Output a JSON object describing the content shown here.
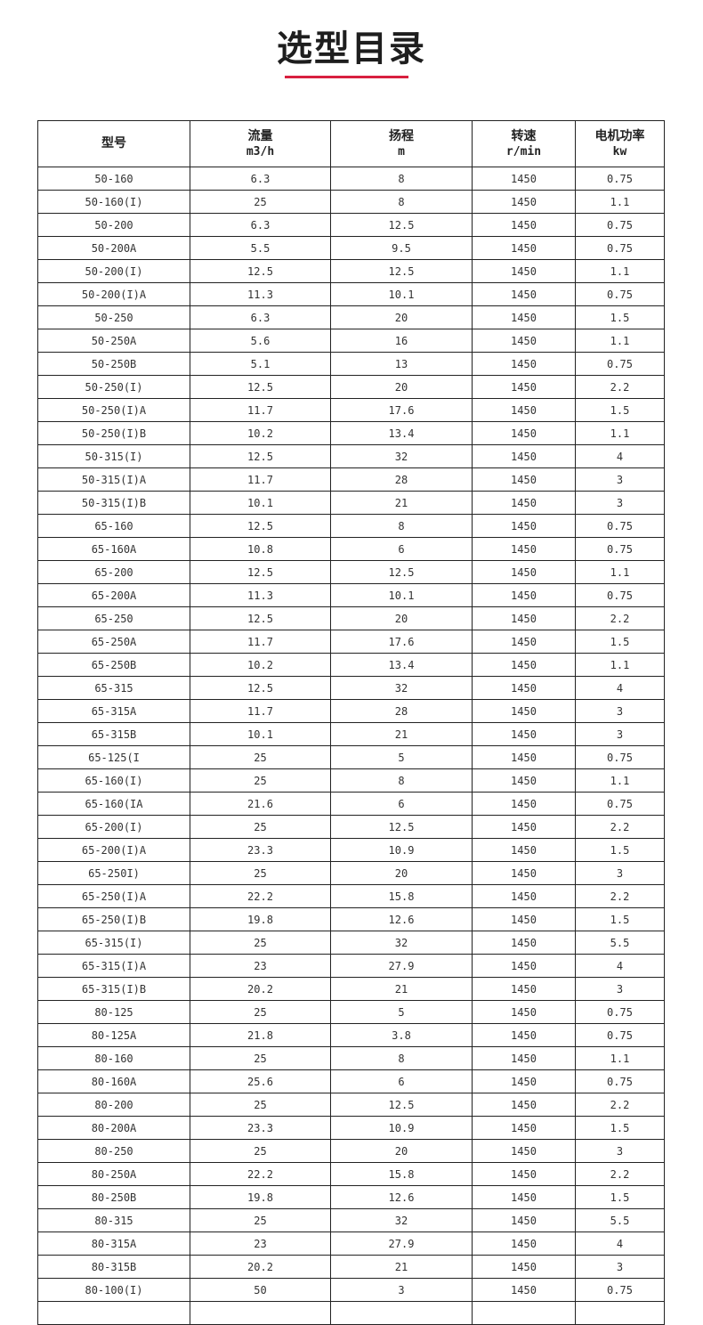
{
  "title": "选型目录",
  "accent_color": "#d8203f",
  "table": {
    "headers": [
      {
        "label": "型号",
        "unit": ""
      },
      {
        "label": "流量",
        "unit": "m3/h"
      },
      {
        "label": "扬程",
        "unit": "m"
      },
      {
        "label": "转速",
        "unit": "r/min"
      },
      {
        "label": "电机功率",
        "unit": "kw"
      }
    ],
    "rows": [
      [
        "50-160",
        "6.3",
        "8",
        "1450",
        "0.75"
      ],
      [
        "50-160(I)",
        "25",
        "8",
        "1450",
        "1.1"
      ],
      [
        "50-200",
        "6.3",
        "12.5",
        "1450",
        "0.75"
      ],
      [
        "50-200A",
        "5.5",
        "9.5",
        "1450",
        "0.75"
      ],
      [
        "50-200(I)",
        "12.5",
        "12.5",
        "1450",
        "1.1"
      ],
      [
        "50-200(I)A",
        "11.3",
        "10.1",
        "1450",
        "0.75"
      ],
      [
        "50-250",
        "6.3",
        "20",
        "1450",
        "1.5"
      ],
      [
        "50-250A",
        "5.6",
        "16",
        "1450",
        "1.1"
      ],
      [
        "50-250B",
        "5.1",
        "13",
        "1450",
        "0.75"
      ],
      [
        "50-250(I)",
        "12.5",
        "20",
        "1450",
        "2.2"
      ],
      [
        "50-250(I)A",
        "11.7",
        "17.6",
        "1450",
        "1.5"
      ],
      [
        "50-250(I)B",
        "10.2",
        "13.4",
        "1450",
        "1.1"
      ],
      [
        "50-315(I)",
        "12.5",
        "32",
        "1450",
        "4"
      ],
      [
        "50-315(I)A",
        "11.7",
        "28",
        "1450",
        "3"
      ],
      [
        "50-315(I)B",
        "10.1",
        "21",
        "1450",
        "3"
      ],
      [
        "65-160",
        "12.5",
        "8",
        "1450",
        "0.75"
      ],
      [
        "65-160A",
        "10.8",
        "6",
        "1450",
        "0.75"
      ],
      [
        "65-200",
        "12.5",
        "12.5",
        "1450",
        "1.1"
      ],
      [
        "65-200A",
        "11.3",
        "10.1",
        "1450",
        "0.75"
      ],
      [
        "65-250",
        "12.5",
        "20",
        "1450",
        "2.2"
      ],
      [
        "65-250A",
        "11.7",
        "17.6",
        "1450",
        "1.5"
      ],
      [
        "65-250B",
        "10.2",
        "13.4",
        "1450",
        "1.1"
      ],
      [
        "65-315",
        "12.5",
        "32",
        "1450",
        "4"
      ],
      [
        "65-315A",
        "11.7",
        "28",
        "1450",
        "3"
      ],
      [
        "65-315B",
        "10.1",
        "21",
        "1450",
        "3"
      ],
      [
        "65-125(I",
        "25",
        "5",
        "1450",
        "0.75"
      ],
      [
        "65-160(I)",
        "25",
        "8",
        "1450",
        "1.1"
      ],
      [
        "65-160(IA",
        "21.6",
        "6",
        "1450",
        "0.75"
      ],
      [
        "65-200(I)",
        "25",
        "12.5",
        "1450",
        "2.2"
      ],
      [
        "65-200(I)A",
        "23.3",
        "10.9",
        "1450",
        "1.5"
      ],
      [
        "65-250I)",
        "25",
        "20",
        "1450",
        "3"
      ],
      [
        "65-250(I)A",
        "22.2",
        "15.8",
        "1450",
        "2.2"
      ],
      [
        "65-250(I)B",
        "19.8",
        "12.6",
        "1450",
        "1.5"
      ],
      [
        "65-315(I)",
        "25",
        "32",
        "1450",
        "5.5"
      ],
      [
        "65-315(I)A",
        "23",
        "27.9",
        "1450",
        "4"
      ],
      [
        "65-315(I)B",
        "20.2",
        "21",
        "1450",
        "3"
      ],
      [
        "80-125",
        "25",
        "5",
        "1450",
        "0.75"
      ],
      [
        "80-125A",
        "21.8",
        "3.8",
        "1450",
        "0.75"
      ],
      [
        "80-160",
        "25",
        "8",
        "1450",
        "1.1"
      ],
      [
        "80-160A",
        "25.6",
        "6",
        "1450",
        "0.75"
      ],
      [
        "80-200",
        "25",
        "12.5",
        "1450",
        "2.2"
      ],
      [
        "80-200A",
        "23.3",
        "10.9",
        "1450",
        "1.5"
      ],
      [
        "80-250",
        "25",
        "20",
        "1450",
        "3"
      ],
      [
        "80-250A",
        "22.2",
        "15.8",
        "1450",
        "2.2"
      ],
      [
        "80-250B",
        "19.8",
        "12.6",
        "1450",
        "1.5"
      ],
      [
        "80-315",
        "25",
        "32",
        "1450",
        "5.5"
      ],
      [
        "80-315A",
        "23",
        "27.9",
        "1450",
        "4"
      ],
      [
        "80-315B",
        "20.2",
        "21",
        "1450",
        "3"
      ],
      [
        "80-100(I)",
        "50",
        "3",
        "1450",
        "0.75"
      ]
    ]
  }
}
